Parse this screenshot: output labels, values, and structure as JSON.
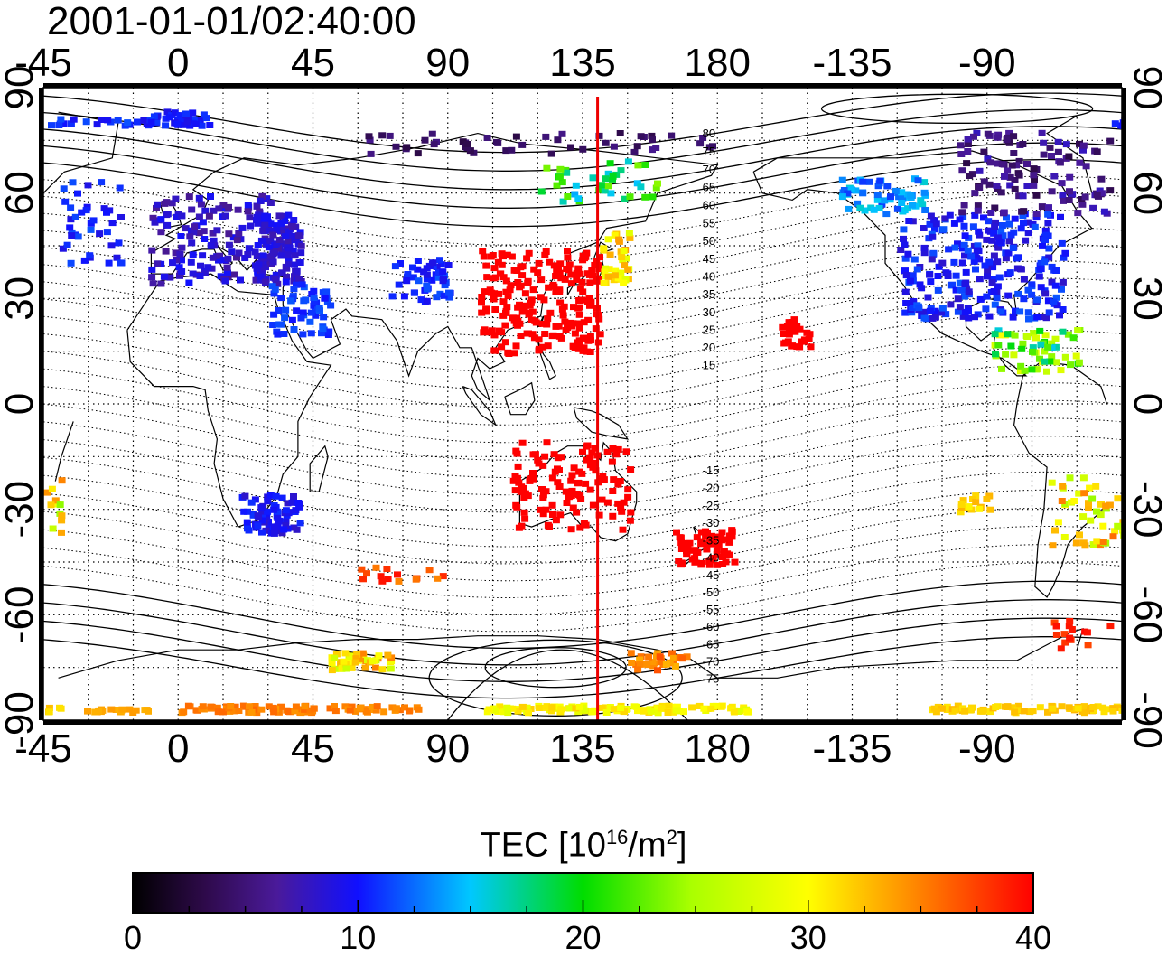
{
  "title": "2001-01-01/02:40:00",
  "map": {
    "projection": "equirectangular",
    "center_longitude": 135,
    "top_longitude_ticks": [
      "0",
      "45",
      "90",
      "135",
      "180",
      "-135",
      "-90",
      "-45"
    ],
    "bottom_longitude_ticks": [
      "0",
      "45",
      "90",
      "135",
      "180",
      "-135",
      "-90",
      "-45"
    ],
    "latitude_ticks": [
      "90",
      "60",
      "30",
      "0",
      "-30",
      "-60",
      "-90"
    ],
    "grid": "dotted 15°",
    "marker_meridian_longitude": 140,
    "marker_color": "#ee0000",
    "magnetic_latitude_contour_labels": [
      "80",
      "75",
      "70",
      "65",
      "60",
      "55",
      "50",
      "45",
      "40",
      "35",
      "30",
      "25",
      "20",
      "15",
      "-15",
      "-20",
      "-25",
      "-30",
      "-35",
      "-40",
      "-45",
      "-50",
      "-55",
      "-60",
      "-65",
      "-70",
      "-75"
    ]
  },
  "colorbar": {
    "title_main": "TEC  [10",
    "title_exp1": "16",
    "title_mid": "/m",
    "title_exp2": "2",
    "title_end": "]",
    "min": 0,
    "max": 40,
    "ticks": [
      "0",
      "10",
      "20",
      "30",
      "40"
    ],
    "colormap": "jet-like (black-purple-blue-cyan-green-yellow-orange-red)"
  }
}
